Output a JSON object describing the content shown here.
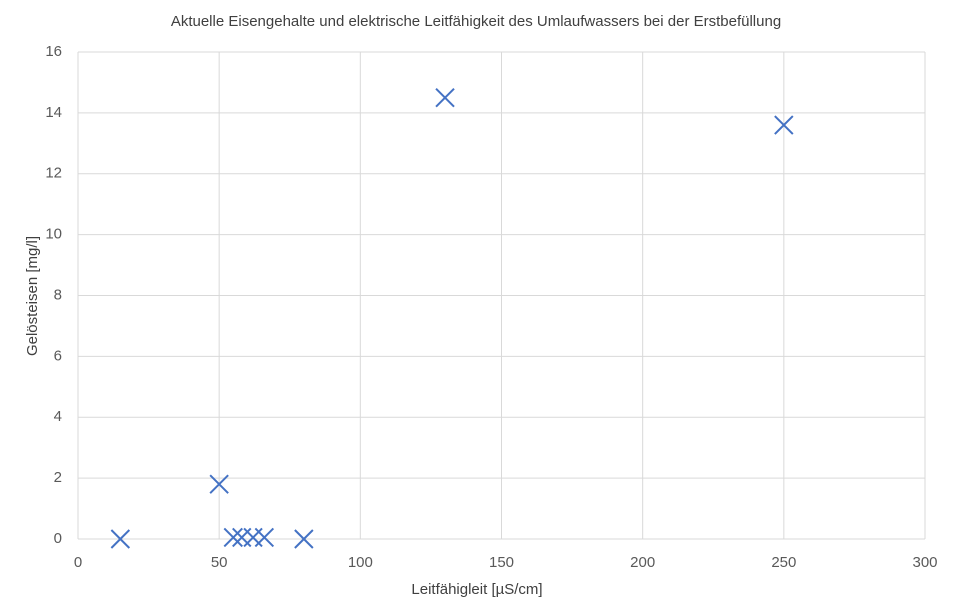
{
  "chart_data": {
    "type": "scatter",
    "title": "Aktuelle Eisengehalte und elektrische Leitfähigkeit des Umlaufwassers bei der Erstbefüllung",
    "x_label": "Leitfähigleit [µS/cm]",
    "y_label": "Gelösteisen [mg/l]",
    "x": [
      15,
      50,
      55,
      58,
      62,
      66,
      80,
      130,
      250
    ],
    "series": [
      {
        "name": "Gelösteisen",
        "color": "#4472c4",
        "values": [
          0,
          1.8,
          0.05,
          0.05,
          0.05,
          0.05,
          0,
          14.5,
          13.6
        ]
      }
    ],
    "xlim": [
      0,
      300
    ],
    "xticks": [
      0,
      50,
      100,
      150,
      200,
      250,
      300
    ],
    "ylim": [
      0,
      16
    ],
    "yticks": [
      0,
      2,
      4,
      6,
      8,
      10,
      12,
      14,
      16
    ],
    "grid": true
  }
}
